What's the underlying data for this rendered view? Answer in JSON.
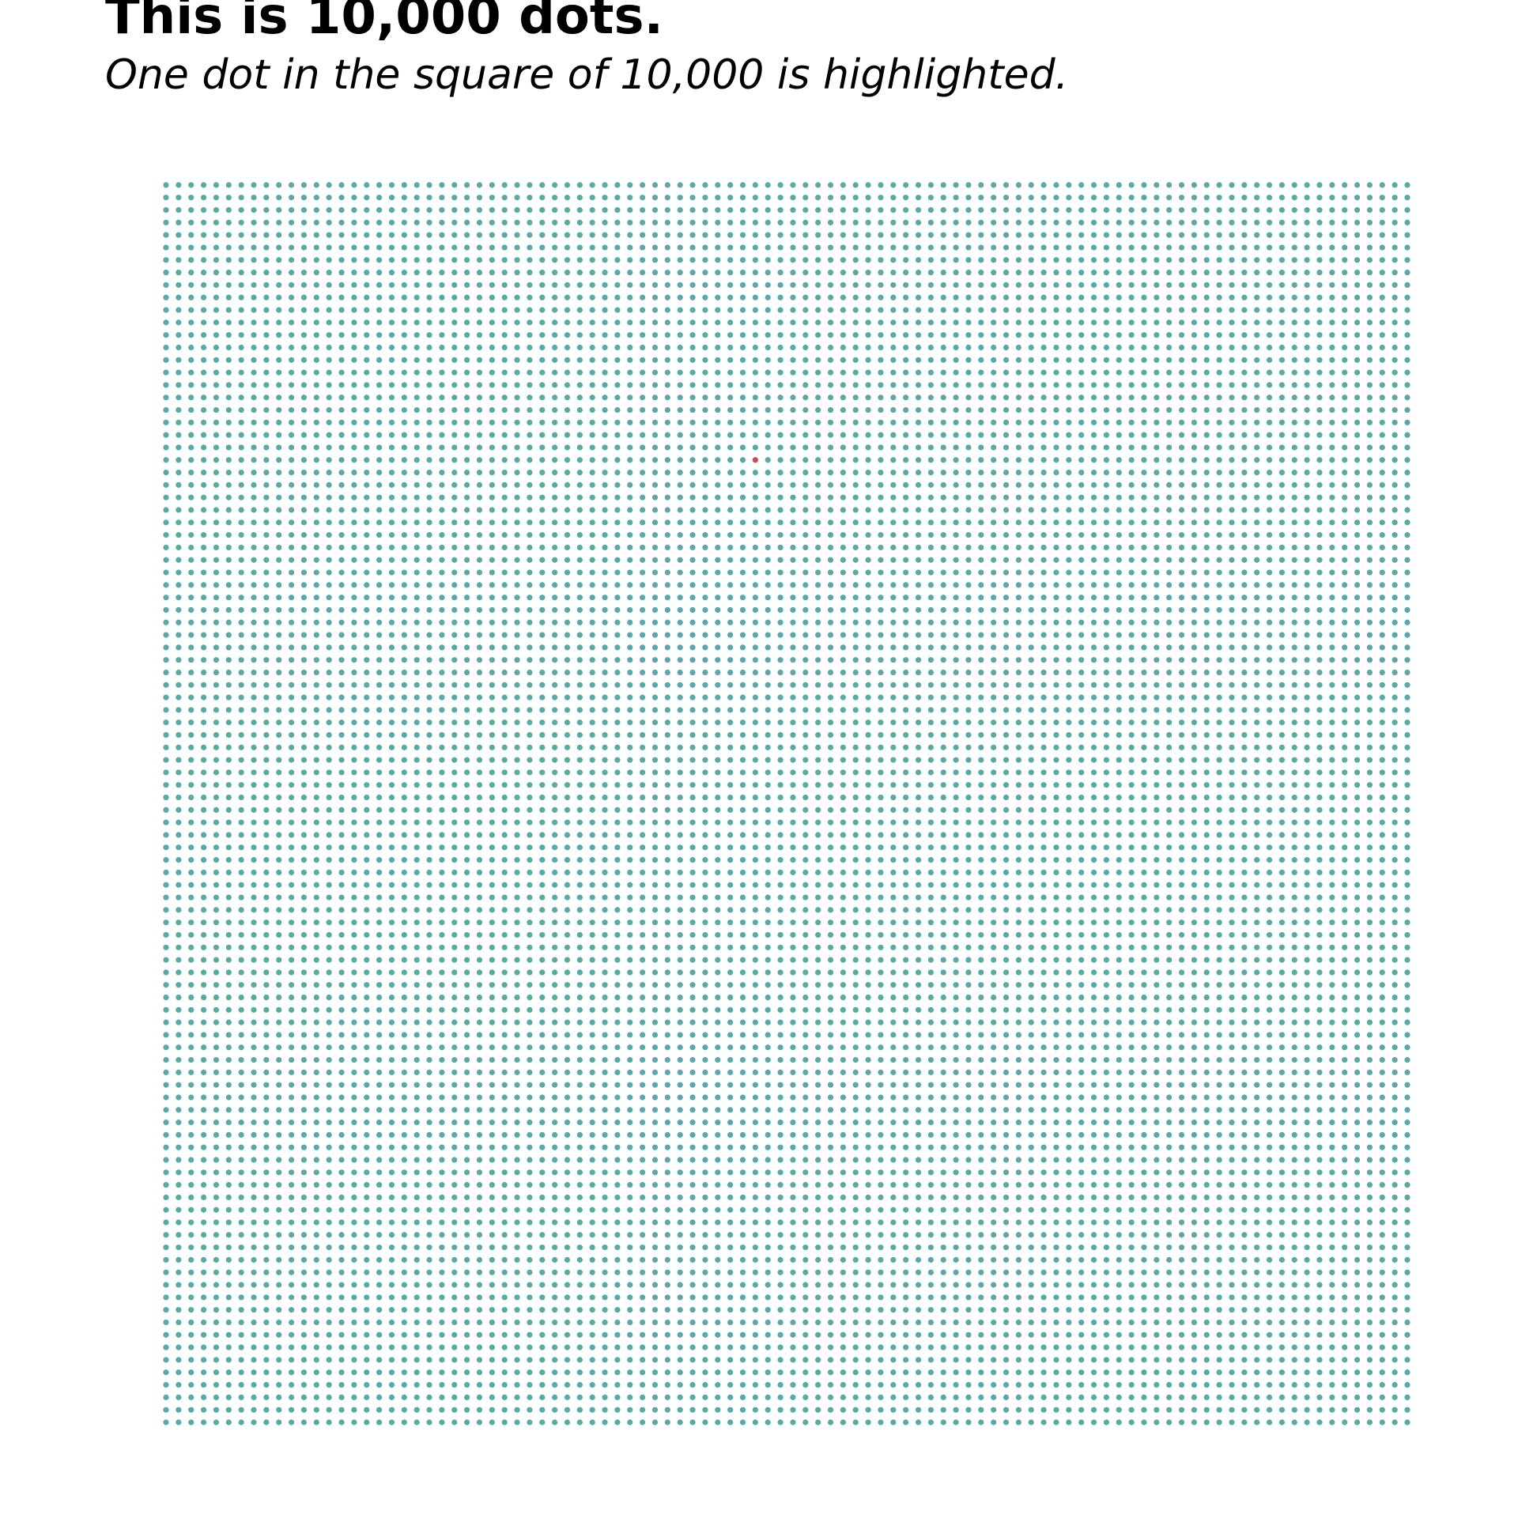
{
  "chart_data": {
    "type": "scatter",
    "title": "This is 10,000 dots.",
    "subtitle": "One dot in the square of 10,000 is highlighted.",
    "xlabel": "",
    "ylabel": "",
    "grid": false,
    "axes_visible": false,
    "grid_size": [
      100,
      100
    ],
    "total_dots": 10000,
    "highlighted": {
      "column": 47,
      "row": 22
    },
    "colors": {
      "dot": "#5aa9a6",
      "highlight": "#c0505a",
      "background": "#ffffff"
    }
  }
}
